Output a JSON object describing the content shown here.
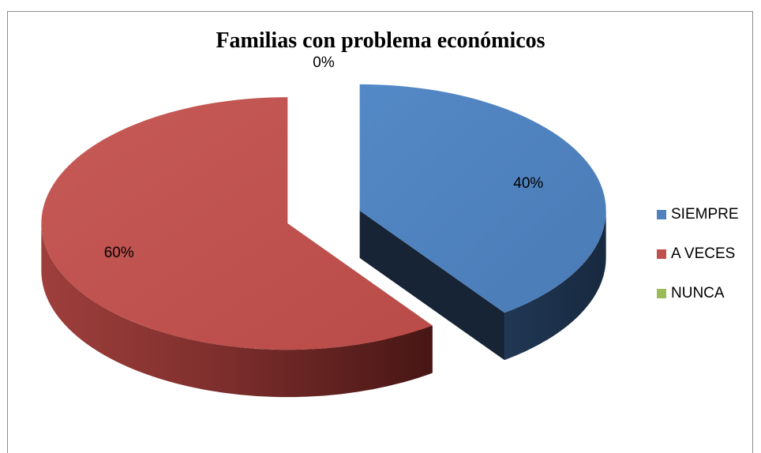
{
  "chart_data": {
    "type": "pie",
    "title": "Familias con problema económicos",
    "categories": [
      "SIEMPRE",
      "A VECES",
      "NUNCA"
    ],
    "values": [
      40,
      60,
      0
    ],
    "data_labels": [
      "40%",
      "60%",
      "0%"
    ],
    "colors": {
      "SIEMPRE": "#4f81bd",
      "A VECES": "#c0504d",
      "NUNCA": "#9bbb59"
    },
    "style": "3d-exploded",
    "legend_position": "right"
  }
}
